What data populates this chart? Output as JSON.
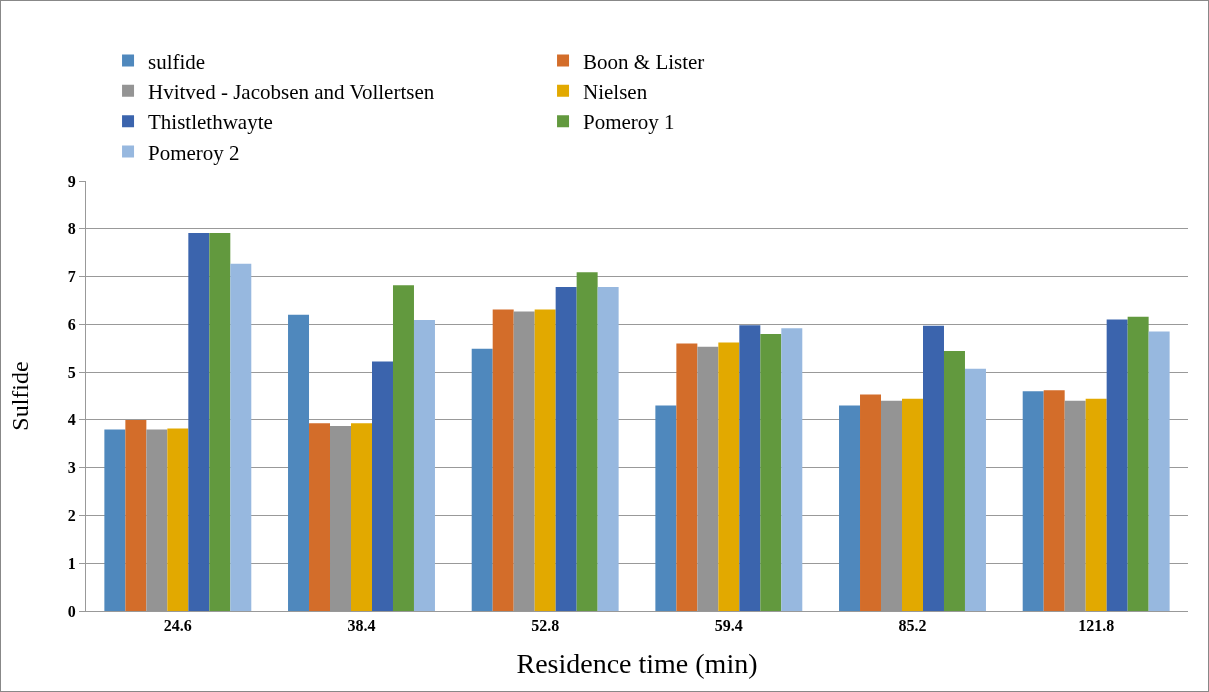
{
  "chart_data": {
    "type": "bar",
    "xlabel": "Residence time (min)",
    "ylabel": "Sulfide",
    "categories": [
      "24.6",
      "38.4",
      "52.8",
      "59.4",
      "85.2",
      "121.8"
    ],
    "series": [
      {
        "name": "sulfide",
        "color": "#4f88bd",
        "values": [
          3.8,
          6.2,
          5.49,
          4.3,
          4.3,
          4.6
        ]
      },
      {
        "name": "Boon & Lister",
        "color": "#d36d2a",
        "values": [
          4.0,
          3.93,
          6.31,
          5.6,
          4.53,
          4.62
        ]
      },
      {
        "name": "Hvitved - Jacobsen and Vollertsen",
        "color": "#949494",
        "values": [
          3.8,
          3.87,
          6.27,
          5.53,
          4.4,
          4.4
        ]
      },
      {
        "name": "Nielsen",
        "color": "#e2a900",
        "values": [
          3.82,
          3.93,
          6.31,
          5.62,
          4.44,
          4.44
        ]
      },
      {
        "name": "Thistlethwayte",
        "color": "#3b64ad",
        "values": [
          7.91,
          5.22,
          6.78,
          5.98,
          5.97,
          6.1
        ]
      },
      {
        "name": "Pomeroy 1",
        "color": "#62993e",
        "values": [
          7.91,
          6.82,
          7.09,
          5.8,
          5.44,
          6.16
        ]
      },
      {
        "name": "Pomeroy 2",
        "color": "#97b8df",
        "values": [
          7.27,
          6.09,
          6.78,
          5.92,
          5.07,
          5.85
        ]
      }
    ],
    "ylim": [
      0,
      9
    ],
    "yticks": [
      0,
      1,
      2,
      3,
      4,
      5,
      6,
      7,
      8,
      9
    ],
    "grid": "y",
    "legend": "top"
  }
}
